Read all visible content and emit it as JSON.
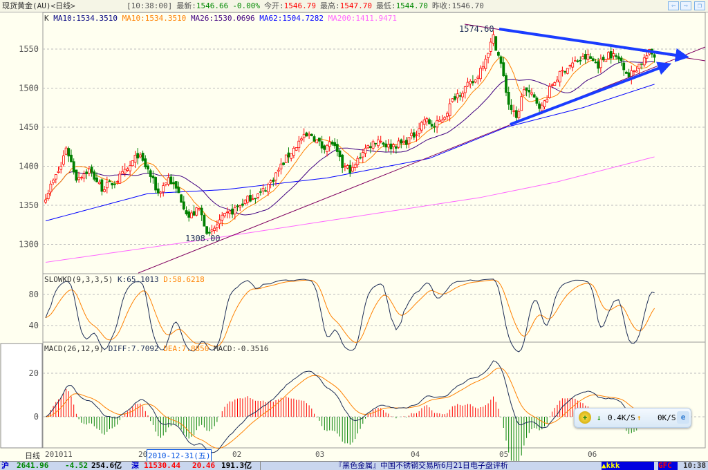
{
  "header": {
    "title": "现货黄金(AU)<日线>",
    "time": "[10:38:00]",
    "latest_label": "最新:",
    "latest": "1546.66",
    "change": "-0.00%",
    "open_label": "今开:",
    "open": "1546.79",
    "high_label": "最高:",
    "high": "1547.70",
    "low_label": "最低:",
    "low": "1544.70",
    "prev_label": "昨收:",
    "prev": "1546.70",
    "nav": [
      {
        "icon": "arrow-left-icon",
        "glyph": "⇦"
      },
      {
        "icon": "arrow-right-icon",
        "glyph": "⇨"
      },
      {
        "icon": "restore-window-icon",
        "glyph": "❐"
      }
    ]
  },
  "ma_legend": {
    "k": "K",
    "items": [
      {
        "text": "MA10:1534.3510",
        "color": "#000080"
      },
      {
        "text": "MA10:1534.3510",
        "color": "#ff8000"
      },
      {
        "text": "MA26:1530.0696",
        "color": "#400080"
      },
      {
        "text": "MA62:1504.7282",
        "color": "#0000ff"
      },
      {
        "text": "MA200:1411.9471",
        "color": "#ff66ff"
      }
    ]
  },
  "kd_legend": {
    "name": "SLOWKD(9,3,3,5)",
    "k": "K:65.1013",
    "d": "D:58.6218"
  },
  "macd_legend": {
    "name": "MACD(26,12,9)",
    "diff": "DIFF:7.7092",
    "dea": "DEA:7.8850",
    "macd": "MACD:-0.3516"
  },
  "annotations": {
    "high": "1574.60",
    "low": "1308.00"
  },
  "chart_data": {
    "type": "candlestick",
    "price_axis": {
      "ticks": [
        1550,
        1500,
        1450,
        1400,
        1350,
        1300
      ],
      "range": [
        1265,
        1585
      ]
    },
    "kd_axis": {
      "ticks": [
        80,
        40
      ],
      "range": [
        15,
        105
      ]
    },
    "macd_axis": {
      "ticks": [
        20,
        0
      ],
      "range": [
        -8,
        33
      ]
    },
    "x_labels": [
      "201011",
      "20",
      "02",
      "03",
      "04",
      "05",
      "06"
    ],
    "cursor_date": "2010-12-31(五)",
    "period_label": "日线",
    "close_anchors": [
      [
        0,
        1362
      ],
      [
        6,
        1400
      ],
      [
        8,
        1425
      ],
      [
        12,
        1385
      ],
      [
        17,
        1395
      ],
      [
        22,
        1372
      ],
      [
        27,
        1380
      ],
      [
        32,
        1395
      ],
      [
        36,
        1415
      ],
      [
        40,
        1395
      ],
      [
        44,
        1365
      ],
      [
        48,
        1385
      ],
      [
        52,
        1365
      ],
      [
        56,
        1335
      ],
      [
        60,
        1345
      ],
      [
        64,
        1310
      ],
      [
        68,
        1330
      ],
      [
        72,
        1340
      ],
      [
        76,
        1350
      ],
      [
        80,
        1360
      ],
      [
        84,
        1365
      ],
      [
        88,
        1380
      ],
      [
        94,
        1410
      ],
      [
        100,
        1435
      ],
      [
        104,
        1440
      ],
      [
        108,
        1425
      ],
      [
        112,
        1430
      ],
      [
        116,
        1400
      ],
      [
        120,
        1395
      ],
      [
        124,
        1420
      ],
      [
        130,
        1435
      ],
      [
        134,
        1425
      ],
      [
        140,
        1430
      ],
      [
        144,
        1440
      ],
      [
        148,
        1460
      ],
      [
        152,
        1450
      ],
      [
        156,
        1465
      ],
      [
        160,
        1490
      ],
      [
        164,
        1500
      ],
      [
        168,
        1510
      ],
      [
        172,
        1540
      ],
      [
        175,
        1565
      ],
      [
        178,
        1530
      ],
      [
        181,
        1480
      ],
      [
        184,
        1460
      ],
      [
        187,
        1500
      ],
      [
        190,
        1490
      ],
      [
        194,
        1475
      ],
      [
        198,
        1505
      ],
      [
        203,
        1525
      ],
      [
        208,
        1535
      ],
      [
        212,
        1540
      ],
      [
        216,
        1530
      ],
      [
        220,
        1545
      ],
      [
        225,
        1535
      ],
      [
        228,
        1515
      ],
      [
        232,
        1530
      ],
      [
        236,
        1545
      ],
      [
        238,
        1542
      ]
    ],
    "ma62_anchors": [
      [
        0,
        1330
      ],
      [
        40,
        1365
      ],
      [
        70,
        1370
      ],
      [
        110,
        1385
      ],
      [
        150,
        1410
      ],
      [
        180,
        1450
      ],
      [
        210,
        1475
      ],
      [
        238,
        1505
      ]
    ],
    "ma200_anchors": [
      [
        0,
        1277
      ],
      [
        60,
        1305
      ],
      [
        120,
        1335
      ],
      [
        170,
        1360
      ],
      [
        200,
        1380
      ],
      [
        238,
        1412
      ]
    ],
    "colors": {
      "up": "#ff0000",
      "down": "#008000",
      "ma10": "#ff8000",
      "ma26": "#400080",
      "ma62": "#0000ff",
      "ma200": "#ff66ff",
      "trend": "#800060",
      "arrow": "#1a3cff",
      "kd_k": "#1c2c55",
      "kd_d": "#ff8000"
    }
  },
  "widget": {
    "download": "0.4K/S",
    "upload": "0K/S",
    "icons": [
      "add-icon",
      "arrow-down-icon",
      "arrow-up-icon",
      "ie-browser-icon"
    ]
  },
  "status": {
    "sh_label": "沪",
    "sh_index": "2641.96",
    "sh_change": "-4.52",
    "sh_amount": "254.6亿",
    "sz_label": "深",
    "sz_index": "11530.44",
    "sz_change": "20.46",
    "sz_amount": "191.3亿",
    "news": "『黑色金属』中国不锈钢交易所6月21日电子盘评析",
    "badge": "▲kkk",
    "gfc": "GFC",
    "clock": "10:38"
  }
}
